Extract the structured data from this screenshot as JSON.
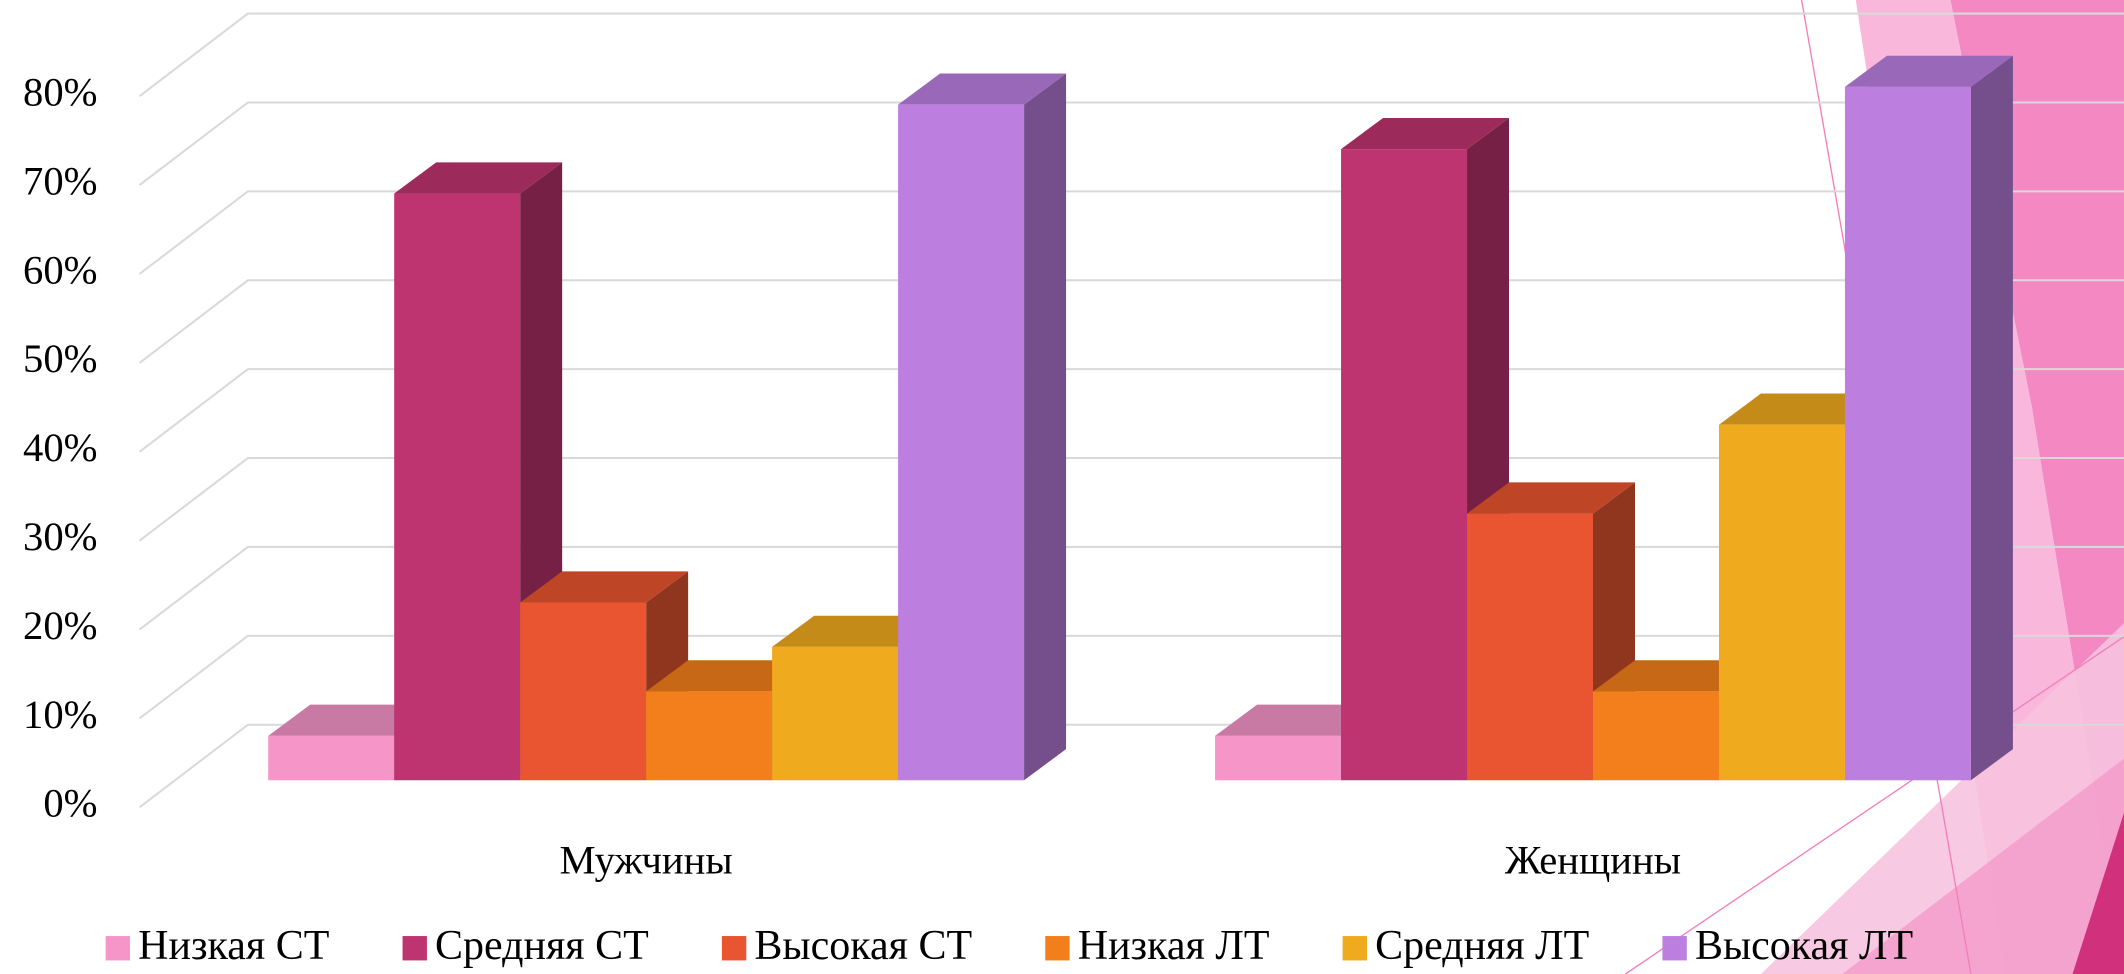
{
  "chart_data": {
    "type": "bar3d",
    "categories": [
      "Мужчины",
      "Женщины"
    ],
    "series": [
      {
        "name": "Низкая СТ",
        "color": "#f595c8",
        "values": [
          5,
          5
        ]
      },
      {
        "name": "Средняя СТ",
        "color": "#be3470",
        "values": [
          66,
          71
        ]
      },
      {
        "name": "Высокая СТ",
        "color": "#e85530",
        "values": [
          20,
          30
        ]
      },
      {
        "name": "Низкая ЛТ",
        "color": "#f27f1b",
        "values": [
          10,
          10
        ]
      },
      {
        "name": "Средняя ЛТ",
        "color": "#f0aa1e",
        "values": [
          15,
          40
        ]
      },
      {
        "name": "Высокая ЛТ",
        "color": "#bc7fe0",
        "values": [
          76,
          78
        ]
      }
    ],
    "ylim": [
      0,
      80
    ],
    "yticks": [
      {
        "value": 0,
        "label": "0%"
      },
      {
        "value": 10,
        "label": "10%"
      },
      {
        "value": 20,
        "label": "20%"
      },
      {
        "value": 30,
        "label": "30%"
      },
      {
        "value": 40,
        "label": "40%"
      },
      {
        "value": 50,
        "label": "50%"
      },
      {
        "value": 60,
        "label": "60%"
      },
      {
        "value": 70,
        "label": "70%"
      },
      {
        "value": 80,
        "label": "80%"
      }
    ],
    "grid": true,
    "legend": "bottom"
  }
}
